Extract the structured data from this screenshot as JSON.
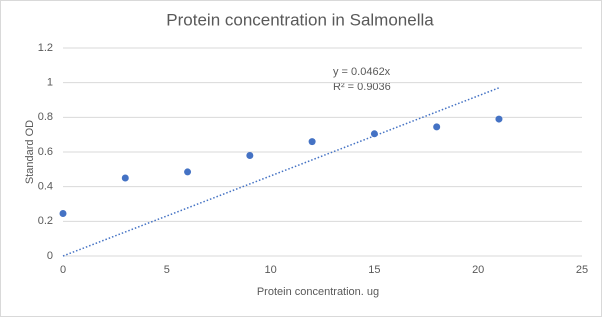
{
  "chart_data": {
    "type": "scatter",
    "title": "Protein concentration in Salmonella",
    "x_label": "Protein concentration. ug",
    "y_label": "Standard OD",
    "x": [
      0,
      3,
      6,
      9,
      12,
      15,
      18,
      21
    ],
    "series": [
      {
        "color": "#4472c4",
        "values": [
          0.245,
          0.45,
          0.485,
          0.58,
          0.66,
          0.705,
          0.745,
          0.79
        ]
      }
    ],
    "trendline": {
      "equation": "y = 0.0462x",
      "r_squared": "R² = 0.9036",
      "slope": 0.0462,
      "color": "#4472c4"
    },
    "xlim": [
      0,
      25
    ],
    "xticks": [
      0,
      5,
      10,
      15,
      20,
      25
    ],
    "ylim": [
      0,
      1.2
    ],
    "yticks": [
      0,
      0.2,
      0.4,
      0.6,
      0.8,
      1,
      1.2
    ],
    "grid": true
  }
}
